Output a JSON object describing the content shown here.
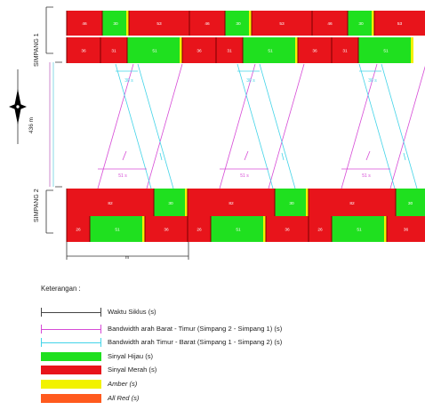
{
  "diagram": {
    "intersections": [
      "SIMPANG 1",
      "SIMPANG 2"
    ],
    "distance_label": "436 m",
    "cycle_label": "m",
    "bandwidth_labels": {
      "barat_timur": [
        "51 s",
        "51 s",
        "51 s"
      ],
      "timur_barat": [
        "30 s",
        "30 s",
        "30 s"
      ]
    },
    "rows": [
      {
        "id": "s1-a",
        "segments": [
          {
            "c": "red",
            "label": "46"
          },
          {
            "c": "green",
            "label": "30"
          },
          {
            "c": "red",
            "label": "53"
          },
          {
            "c": "red",
            "label": "46"
          },
          {
            "c": "green",
            "label": "30"
          },
          {
            "c": "red",
            "label": "53"
          },
          {
            "c": "red",
            "label": "46"
          },
          {
            "c": "green",
            "label": "30"
          },
          {
            "c": "red",
            "label": "53"
          }
        ]
      },
      {
        "id": "s1-b",
        "segments": [
          {
            "c": "red",
            "label": "36"
          },
          {
            "c": "red",
            "label": "31"
          },
          {
            "c": "green",
            "label": "51"
          },
          {
            "c": "red",
            "label": "36"
          },
          {
            "c": "red",
            "label": "31"
          },
          {
            "c": "green",
            "label": "51"
          },
          {
            "c": "red",
            "label": "36"
          },
          {
            "c": "red",
            "label": "31"
          },
          {
            "c": "green",
            "label": "51"
          }
        ]
      },
      {
        "id": "s2-a",
        "segments": [
          {
            "c": "red",
            "label": "82"
          },
          {
            "c": "green",
            "label": "30"
          },
          {
            "c": "red",
            "label": "82"
          },
          {
            "c": "green",
            "label": "30"
          },
          {
            "c": "red",
            "label": "82"
          },
          {
            "c": "green",
            "label": "30"
          }
        ]
      },
      {
        "id": "s2-b",
        "segments": [
          {
            "c": "red",
            "label": "26"
          },
          {
            "c": "green",
            "label": "51"
          },
          {
            "c": "red",
            "label": "36"
          },
          {
            "c": "red",
            "label": "26"
          },
          {
            "c": "green",
            "label": "51"
          },
          {
            "c": "red",
            "label": "36"
          },
          {
            "c": "red",
            "label": "26"
          },
          {
            "c": "green",
            "label": "51"
          },
          {
            "c": "red",
            "label": "36"
          }
        ]
      }
    ]
  },
  "legend": {
    "title": "Keterangan :",
    "items": [
      {
        "kind": "cycle",
        "label": "Waktu Siklus (s)",
        "italic_suffix": true
      },
      {
        "kind": "bw-bt",
        "label": "Bandwidth arah Barat - Timur (Simpang 2 - Simpang 1) (s)"
      },
      {
        "kind": "bw-tb",
        "label": "Bandwidth arah Timur - Barat (Simpang 1 - Simpang 2) (s)"
      },
      {
        "kind": "green",
        "label": "Sinyal Hijau (s)"
      },
      {
        "kind": "red",
        "label": "Sinyal Merah (s)"
      },
      {
        "kind": "amber",
        "label": "Amber (s)",
        "italic": true
      },
      {
        "kind": "allred",
        "label": "All Red (s)",
        "italic": true
      }
    ]
  },
  "colors": {
    "red": "#e8141b",
    "green": "#1fe01f",
    "amber": "#f2f200",
    "allred": "#ff5a1e",
    "magenta": "#d64bd6",
    "cyan": "#43d4e8",
    "dark_red": "#7a0000"
  }
}
